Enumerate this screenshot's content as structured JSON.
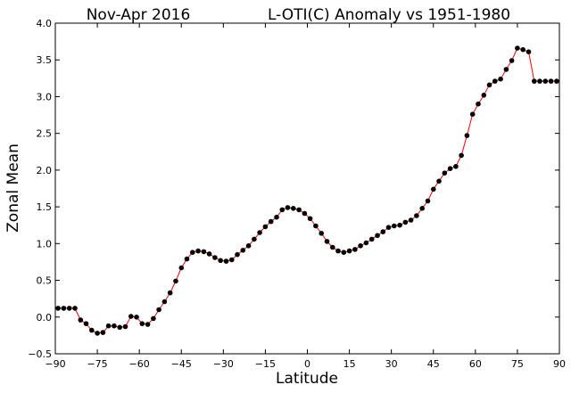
{
  "chart_data": {
    "type": "line",
    "title_left": "Nov-Apr 2016",
    "title_right": "L-OTI(C) Anomaly vs 1951-1980",
    "xlabel": "Latitude",
    "ylabel": "Zonal Mean",
    "xlim": [
      -90,
      90
    ],
    "ylim": [
      -0.5,
      4.0
    ],
    "xticks": [
      -90,
      -75,
      -60,
      -45,
      -30,
      -15,
      0,
      15,
      30,
      45,
      60,
      75,
      90
    ],
    "yticks": [
      -0.5,
      0.0,
      0.5,
      1.0,
      1.5,
      2.0,
      2.5,
      3.0,
      3.5,
      4.0
    ],
    "ytick_labels": [
      "−0.5",
      "0.0",
      "0.5",
      "1.0",
      "1.5",
      "2.0",
      "2.5",
      "3.0",
      "3.5",
      "4.0"
    ],
    "xtick_labels": [
      "−90",
      "−75",
      "−60",
      "−45",
      "−30",
      "−15",
      "0",
      "15",
      "30",
      "45",
      "60",
      "75",
      "90"
    ],
    "grid": false,
    "line_color": "#ff0000",
    "marker_color": "#000000",
    "series": [
      {
        "x": [
          -89,
          -87,
          -85,
          -83,
          -81,
          -79,
          -77,
          -75,
          -73,
          -71,
          -69,
          -67,
          -65,
          -63,
          -61,
          -59,
          -57,
          -55,
          -53,
          -51,
          -49,
          -47,
          -45,
          -43,
          -41,
          -39,
          -37,
          -35,
          -33,
          -31,
          -29,
          -27,
          -25,
          -23,
          -21,
          -19,
          -17,
          -15,
          -13,
          -11,
          -9,
          -7,
          -5,
          -3,
          -1,
          1,
          3,
          5,
          7,
          9,
          11,
          13,
          15,
          17,
          19,
          21,
          23,
          25,
          27,
          29,
          31,
          33,
          35,
          37,
          39,
          41,
          43,
          45,
          47,
          49,
          51,
          53,
          55,
          57,
          59,
          61,
          63,
          65,
          67,
          69,
          71,
          73,
          75,
          77,
          79,
          81,
          83,
          85,
          87,
          89
        ],
        "y": [
          0.12,
          0.12,
          0.12,
          0.12,
          -0.04,
          -0.09,
          -0.18,
          -0.22,
          -0.21,
          -0.12,
          -0.12,
          -0.14,
          -0.13,
          0.01,
          0.0,
          -0.09,
          -0.1,
          -0.02,
          0.1,
          0.21,
          0.33,
          0.49,
          0.67,
          0.79,
          0.88,
          0.9,
          0.89,
          0.86,
          0.81,
          0.77,
          0.76,
          0.78,
          0.85,
          0.91,
          0.97,
          1.06,
          1.15,
          1.23,
          1.3,
          1.36,
          1.46,
          1.49,
          1.48,
          1.46,
          1.41,
          1.34,
          1.24,
          1.14,
          1.03,
          0.95,
          0.9,
          0.88,
          0.9,
          0.92,
          0.97,
          1.01,
          1.06,
          1.11,
          1.16,
          1.22,
          1.24,
          1.25,
          1.29,
          1.32,
          1.38,
          1.48,
          1.58,
          1.74,
          1.85,
          1.96,
          2.02,
          2.05,
          2.2,
          2.47,
          2.76,
          2.9,
          3.02,
          3.16,
          3.21,
          3.24,
          3.37,
          3.49,
          3.66,
          3.64,
          3.61,
          3.21,
          3.21,
          3.21,
          3.21,
          3.21
        ]
      }
    ]
  }
}
